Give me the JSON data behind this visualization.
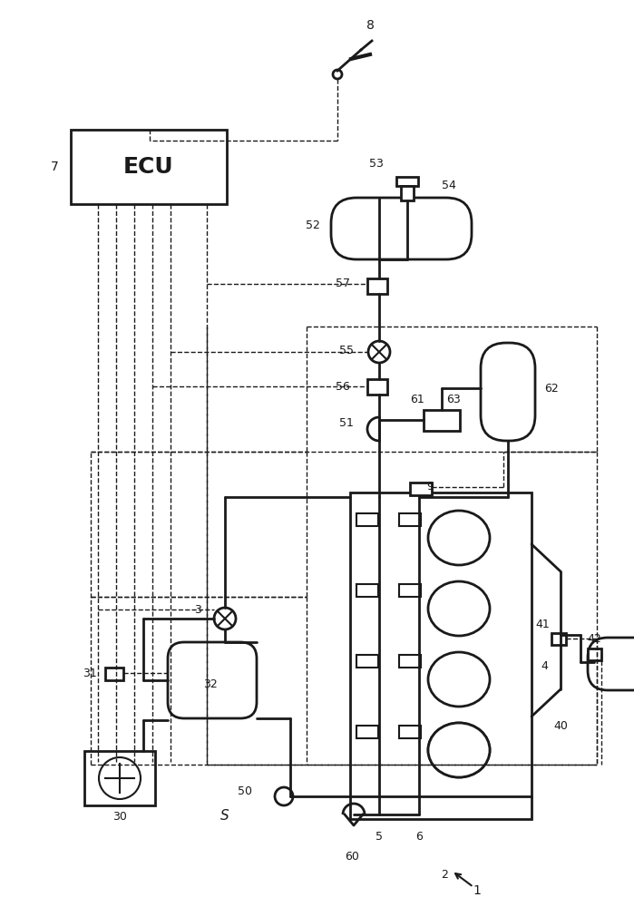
{
  "bg_color": "#ffffff",
  "lc": "#1a1a1a",
  "fig_w": 6.99,
  "fig_h": 10.0,
  "dpi": 100
}
